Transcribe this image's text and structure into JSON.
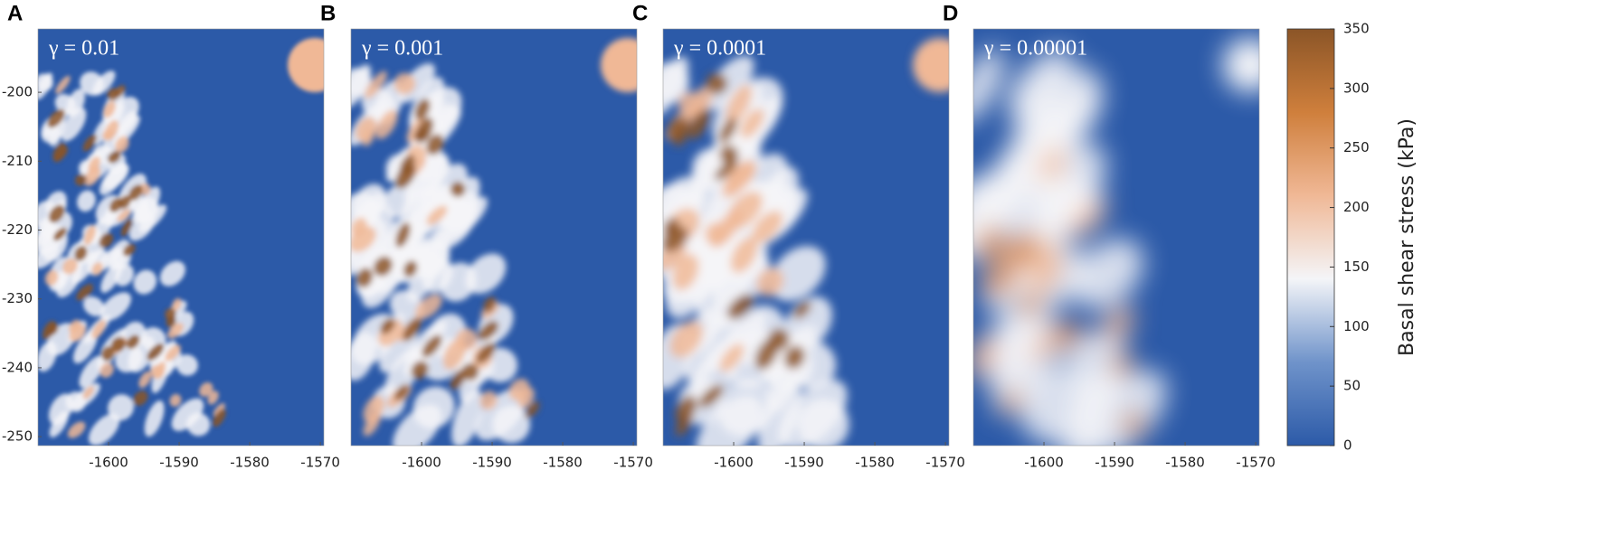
{
  "chart_data": [
    {
      "type": "heatmap",
      "panel_label": "A",
      "annotation": "γ = 0.01",
      "xlim": [
        -1610,
        -1569.5
      ],
      "ylim": [
        -251.3,
        -190.8
      ],
      "xticks": [
        -1600,
        -1590,
        -1580,
        -1570
      ],
      "yticks": [
        -250,
        -240,
        -230,
        -220,
        -210,
        -200
      ]
    },
    {
      "type": "heatmap",
      "panel_label": "B",
      "annotation": "γ = 0.001",
      "xlim": [
        -1610,
        -1569.5
      ],
      "ylim": [
        -251.3,
        -190.8
      ],
      "xticks": [
        -1600,
        -1590,
        -1580,
        -1570
      ]
    },
    {
      "type": "heatmap",
      "panel_label": "C",
      "annotation": "γ = 0.0001",
      "xlim": [
        -1610,
        -1569.5
      ],
      "ylim": [
        -251.3,
        -190.8
      ],
      "xticks": [
        -1600,
        -1590,
        -1580,
        -1570
      ]
    },
    {
      "type": "heatmap",
      "panel_label": "D",
      "annotation": "γ = 0.00001",
      "xlim": [
        -1610,
        -1569.5
      ],
      "ylim": [
        -251.3,
        -190.8
      ],
      "xticks": [
        -1600,
        -1590,
        -1580,
        -1570
      ]
    }
  ],
  "colorbar": {
    "label": "Basal shear stress (kPa)",
    "lim": [
      0,
      350
    ],
    "ticks": [
      0,
      50,
      100,
      150,
      200,
      250,
      300,
      350
    ],
    "colors": [
      "#2c5aa8",
      "#6f93ca",
      "#f4f5f8",
      "#f0b896",
      "#cf7f3c",
      "#8b5527"
    ]
  }
}
